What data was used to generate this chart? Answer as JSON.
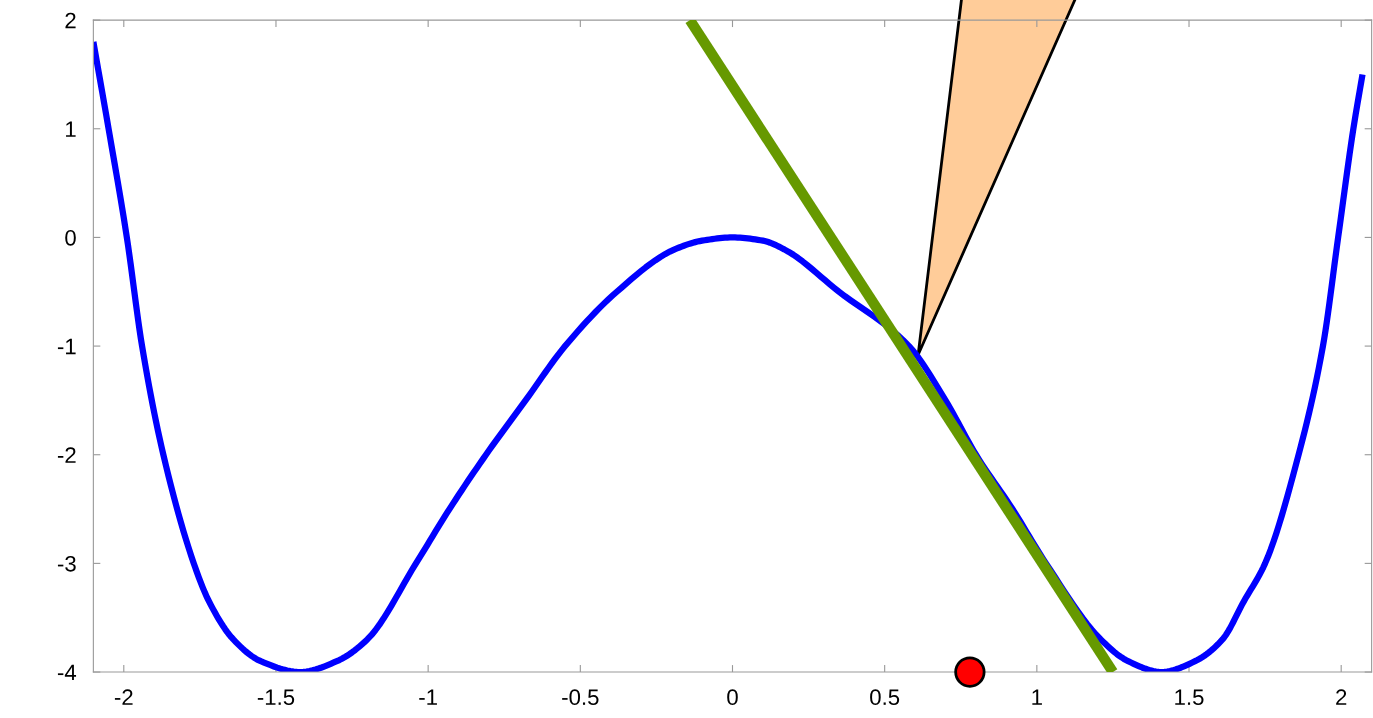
{
  "chart_data": {
    "type": "line",
    "xlim": [
      -2.1,
      2.1
    ],
    "ylim": [
      -4,
      2
    ],
    "xticks": [
      -2,
      -1.5,
      -1,
      -0.5,
      0,
      0.5,
      1,
      1.5,
      2
    ],
    "yticks": [
      -4,
      -3,
      -2,
      -1,
      0,
      1,
      2
    ],
    "grid": false,
    "marker": "none",
    "line_style": "solid",
    "series": [
      {
        "color": "#0000ff",
        "x": [
          -2.1,
          -2.05,
          -1.99,
          -1.94,
          -1.87,
          -1.77,
          -1.72,
          -1.64,
          -1.55,
          -1.42,
          -1.3,
          -1.2,
          -1.04,
          -0.93,
          -0.81,
          -0.68,
          -0.55,
          -0.38,
          -0.19,
          -0.1,
          0,
          0.1,
          0.17,
          0.35,
          0.58,
          0.7,
          0.8,
          0.92,
          1.03,
          1.21,
          1.3,
          1.41,
          1.52,
          1.61,
          1.68,
          1.75,
          1.86,
          1.94,
          1.99,
          2.04,
          2.07
        ],
        "values": [
          1.8,
          1,
          0,
          -1,
          -2,
          -3,
          -3.35,
          -3.7,
          -3.9,
          -4,
          -3.9,
          -3.7,
          -3,
          -2.5,
          -2,
          -1.5,
          -1,
          -0.5,
          -0.11,
          -0.03,
          0,
          -0.03,
          -0.11,
          -0.5,
          -1,
          -1.5,
          -2,
          -2.5,
          -3,
          -3.7,
          -3.9,
          -4,
          -3.9,
          -3.7,
          -3.35,
          -3,
          -2,
          -1,
          0,
          1,
          1.5
        ]
      },
      {
        "type": "line",
        "color": "#669900",
        "x": [
          -0.14,
          1.25
        ],
        "values": [
          2.0,
          -4.0
        ]
      },
      {
        "type": "scatter",
        "color": "#ff0000",
        "marker": "circle",
        "x": [
          0.78
        ],
        "values": [
          -4.0
        ]
      }
    ]
  }
}
